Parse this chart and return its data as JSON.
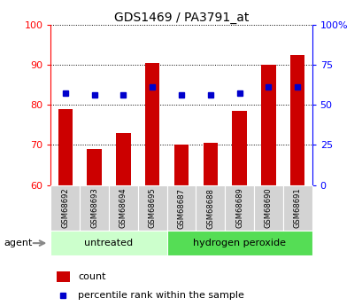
{
  "title": "GDS1469 / PA3791_at",
  "samples": [
    "GSM68692",
    "GSM68693",
    "GSM68694",
    "GSM68695",
    "GSM68687",
    "GSM68688",
    "GSM68689",
    "GSM68690",
    "GSM68691"
  ],
  "counts": [
    79,
    69,
    73,
    90.5,
    70,
    70.5,
    78.5,
    90,
    92.5
  ],
  "percentile_ranks_left": [
    83,
    82.5,
    82.5,
    84.5,
    82.5,
    82.5,
    83,
    84.5,
    84.5
  ],
  "ylim_left": [
    60,
    100
  ],
  "ylim_right": [
    0,
    100
  ],
  "yticks_left": [
    60,
    70,
    80,
    90,
    100
  ],
  "ytick_labels_left": [
    "60",
    "70",
    "80",
    "90",
    "100"
  ],
  "yticks_right": [
    0,
    25,
    50,
    75,
    100
  ],
  "ytick_labels_right": [
    "0",
    "25",
    "50",
    "75",
    "100%"
  ],
  "groups": [
    {
      "label": "untreated",
      "indices": [
        0,
        1,
        2,
        3
      ]
    },
    {
      "label": "hydrogen peroxide",
      "indices": [
        4,
        5,
        6,
        7,
        8
      ]
    }
  ],
  "bar_color": "#CC0000",
  "dot_color": "#0000CC",
  "untreated_color": "#CCFFCC",
  "hydrogen_color": "#55DD55",
  "tick_bg_color": "#D3D3D3",
  "count_label": "count",
  "percentile_label": "percentile rank within the sample",
  "agent_label": "agent"
}
